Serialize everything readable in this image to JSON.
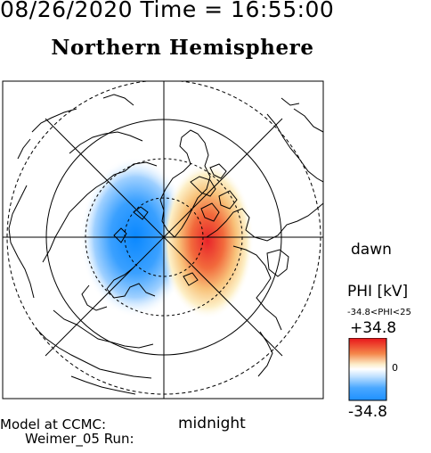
{
  "header": {
    "datetime": "08/26/2020 Time = 16:55:00",
    "title": "Northern Hemisphere"
  },
  "map": {
    "side_label": "dawn",
    "bottom_label": "midnight"
  },
  "colorbar": {
    "label": "PHI [kV]",
    "range_text": "-34.8<PHI<25",
    "max_label": "+34.8",
    "zero_label": "0",
    "min_label": "-34.8",
    "colors": {
      "negative": "#1e90ff",
      "zero": "#ffffff",
      "positive": "#e8141a"
    }
  },
  "footer": {
    "model_line": "Model at CCMC:",
    "run_line": "Weimer_05 Run:"
  }
}
